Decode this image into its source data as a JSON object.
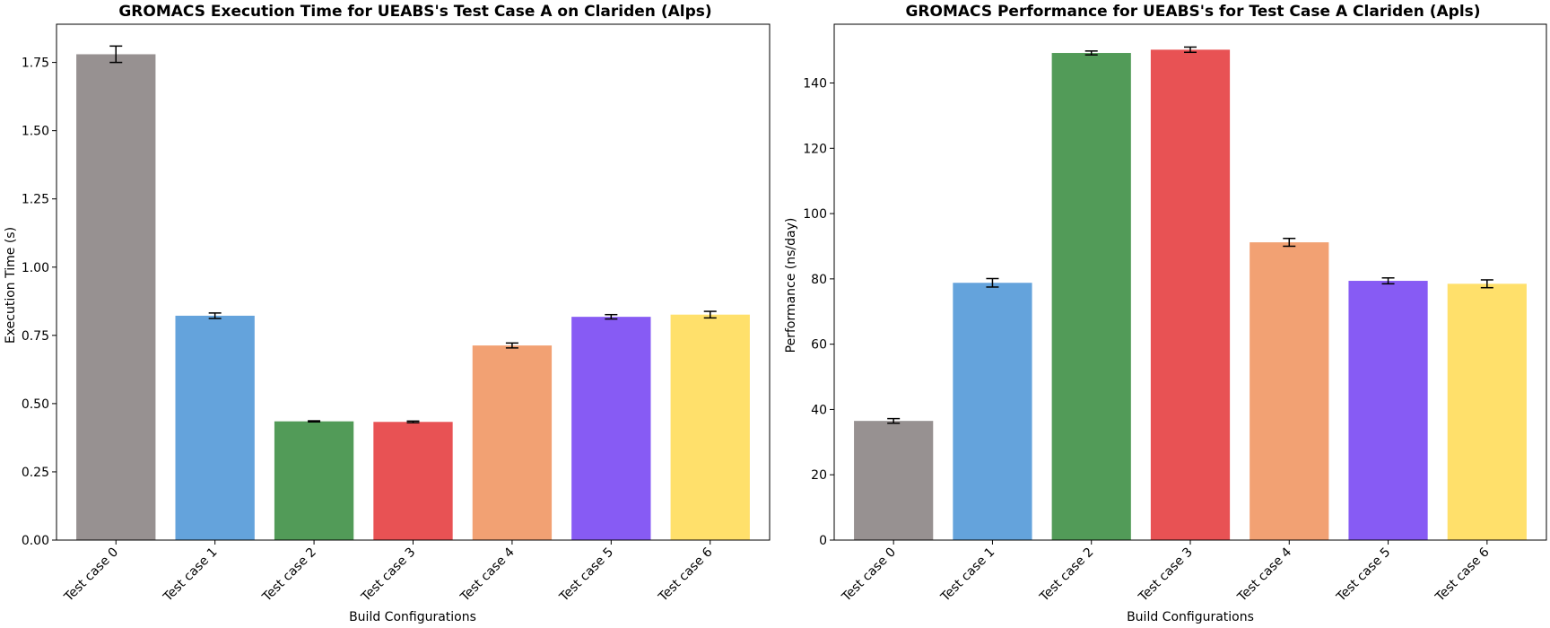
{
  "chart_data": [
    {
      "type": "bar",
      "title": "GROMACS Execution Time for UEABS's Test Case A on Clariden (Alps)",
      "xlabel": "Build Configurations",
      "ylabel": "Execution Time (s)",
      "ylim": [
        0,
        1.89
      ],
      "yticks": [
        0.0,
        0.25,
        0.5,
        0.75,
        1.0,
        1.25,
        1.5,
        1.75
      ],
      "ytick_labels": [
        "0.00",
        "0.25",
        "0.50",
        "0.75",
        "1.00",
        "1.25",
        "1.50",
        "1.75"
      ],
      "categories": [
        "Test case 0",
        "Test case 1",
        "Test case 2",
        "Test case 3",
        "Test case 4",
        "Test case 5",
        "Test case 6"
      ],
      "values": [
        1.78,
        0.822,
        0.435,
        0.433,
        0.713,
        0.818,
        0.826
      ],
      "errors": [
        0.03,
        0.01,
        0.002,
        0.003,
        0.009,
        0.008,
        0.012
      ],
      "colors": [
        "#979191",
        "#64a3dc",
        "#529b58",
        "#e85254",
        "#f2a173",
        "#875bf4",
        "#ffe06b"
      ],
      "grid": false,
      "legend": "none"
    },
    {
      "type": "bar",
      "title": "GROMACS Performance for UEABS's for Test Case A Clariden (Apls)",
      "xlabel": "Build Configurations",
      "ylabel": "Performance (ns/day)",
      "ylim": [
        0,
        158
      ],
      "yticks": [
        0,
        20,
        40,
        60,
        80,
        100,
        120,
        140
      ],
      "ytick_labels": [
        "0",
        "20",
        "40",
        "60",
        "80",
        "100",
        "120",
        "140"
      ],
      "categories": [
        "Test case 0",
        "Test case 1",
        "Test case 2",
        "Test case 3",
        "Test case 4",
        "Test case 5",
        "Test case 6"
      ],
      "values": [
        36.5,
        78.8,
        149.2,
        150.2,
        91.2,
        79.4,
        78.5
      ],
      "errors": [
        0.7,
        1.3,
        0.6,
        0.8,
        1.2,
        0.9,
        1.2
      ],
      "colors": [
        "#979191",
        "#64a3dc",
        "#529b58",
        "#e85254",
        "#f2a173",
        "#875bf4",
        "#ffe06b"
      ],
      "grid": false,
      "legend": "none"
    }
  ]
}
